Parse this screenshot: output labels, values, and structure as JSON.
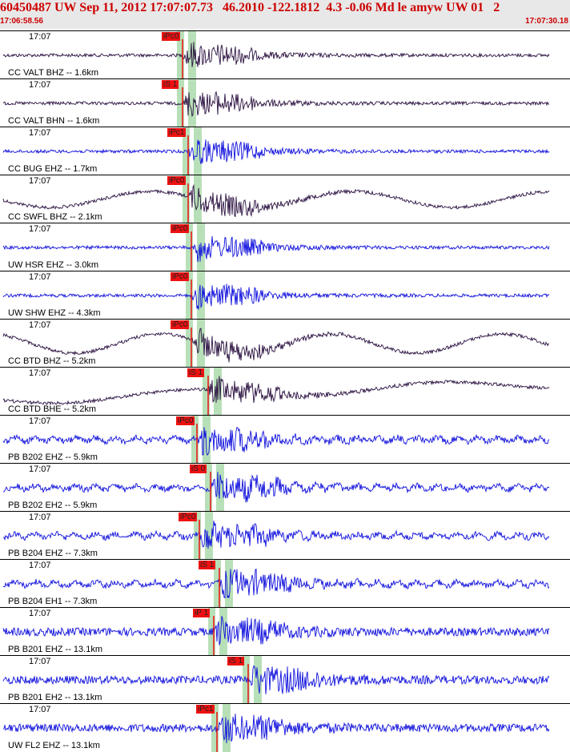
{
  "header": {
    "title": "60450487 UW Sep 11, 2012 17:07:07.73   46.2010 -122.1812  4.3 -0.06 Md le amyw UW 01   2",
    "start_time": "17:06:58.56",
    "end_time": "17:07:30.18"
  },
  "colors": {
    "trace_dark": "#2a1040",
    "trace_blue": "#1010dd",
    "pick": "#ee1111",
    "window": "#b8e0b8"
  },
  "traces": [
    {
      "label": "CC VALT BHZ -- 1.6km",
      "time": "17:07",
      "pick": "iPc0",
      "color": "dark",
      "pick_at": 0.32,
      "style": "burst"
    },
    {
      "label": "CC VALT BHN -- 1.6km",
      "time": "17:07",
      "pick": "iS 1",
      "color": "dark",
      "pick_at": 0.32,
      "style": "burst"
    },
    {
      "label": "CC BUG EHZ -- 1.7km",
      "time": "17:07",
      "pick": "iPc1",
      "color": "blue",
      "pick_at": 0.33,
      "style": "burst"
    },
    {
      "label": "CC SWFL BHZ -- 2.1km",
      "time": "17:07",
      "pick": "iPc0",
      "color": "dark",
      "pick_at": 0.33,
      "style": "wave"
    },
    {
      "label": "UW HSR EHZ -- 3.0km",
      "time": "17:07",
      "pick": "iPc0",
      "color": "blue",
      "pick_at": 0.335,
      "style": "burst"
    },
    {
      "label": "UW SHW EHZ -- 4.3km",
      "time": "17:07",
      "pick": "iPc0",
      "color": "blue",
      "pick_at": 0.335,
      "style": "burst"
    },
    {
      "label": "CC BTD BHZ -- 5.2km",
      "time": "17:07",
      "pick": "iPc0",
      "color": "dark",
      "pick_at": 0.335,
      "style": "swell"
    },
    {
      "label": "CC BTD BHE -- 5.2km",
      "time": "17:07",
      "pick": "iS 1",
      "color": "dark",
      "pick_at": 0.365,
      "style": "drift"
    },
    {
      "label": "PB B202 EHZ -- 5.9km",
      "time": "17:07",
      "pick": "iPc0",
      "color": "blue",
      "pick_at": 0.345,
      "style": "noisy"
    },
    {
      "label": "PB B202 EH2 -- 5.9km",
      "time": "17:07",
      "pick": "iS 0",
      "color": "blue",
      "pick_at": 0.37,
      "style": "noisy"
    },
    {
      "label": "PB B204 EHZ -- 7.3km",
      "time": "17:07",
      "pick": "iPc0",
      "color": "blue",
      "pick_at": 0.35,
      "style": "noisy"
    },
    {
      "label": "PB B204 EH1 -- 7.3km",
      "time": "17:07",
      "pick": "iS 1",
      "color": "blue",
      "pick_at": 0.385,
      "style": "noisy"
    },
    {
      "label": "PB B201 EHZ -- 13.1km",
      "time": "17:07",
      "pick": "iP 1",
      "color": "blue",
      "pick_at": 0.375,
      "style": "hnoise"
    },
    {
      "label": "PB B201 EH2 -- 13.1km",
      "time": "17:07",
      "pick": "iS 1",
      "color": "blue",
      "pick_at": 0.435,
      "style": "hnoise"
    },
    {
      "label": "UW FL2 EHZ -- 13.1km",
      "time": "17:07",
      "pick": "iPc1",
      "color": "blue",
      "pick_at": 0.38,
      "style": "hnoise"
    }
  ]
}
